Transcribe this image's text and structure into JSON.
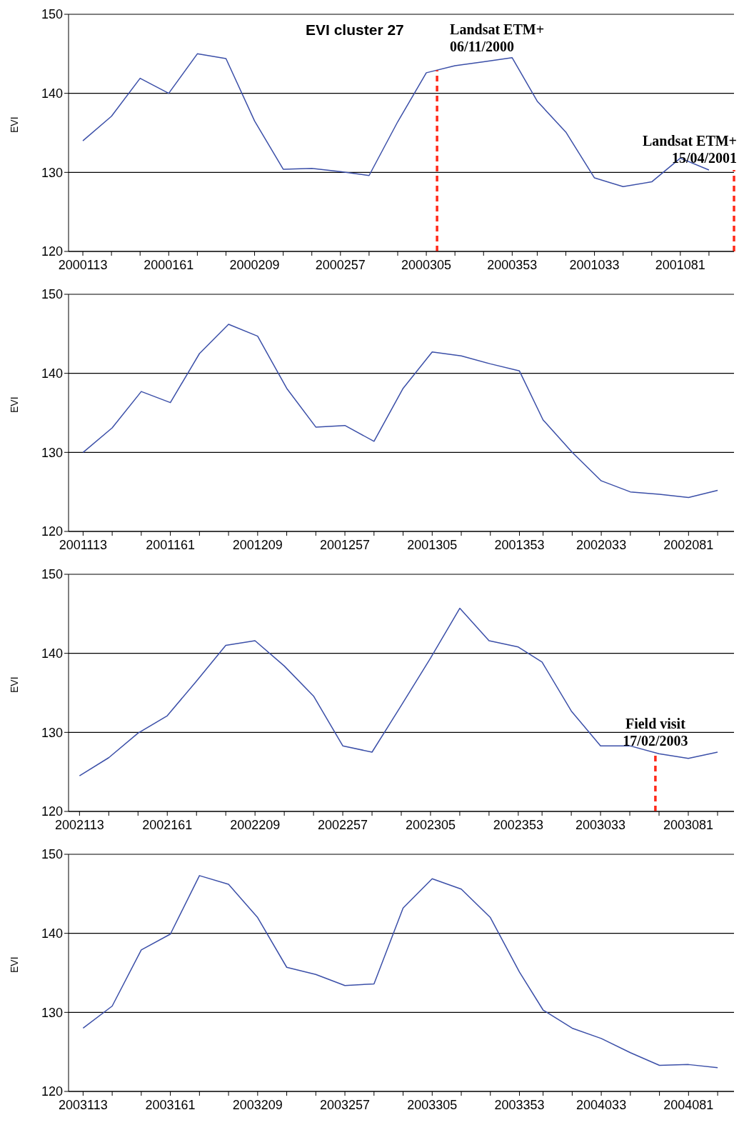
{
  "chart_data": [
    {
      "type": "line",
      "title": "EVI cluster 27",
      "ylabel": "EVI",
      "color": "#3b4fa8",
      "ylim": [
        120,
        150
      ],
      "yticks": [
        120,
        130,
        140,
        150
      ],
      "grid": "y",
      "xlim": [
        "2000-04-14",
        "2001-04-21"
      ],
      "x": [
        "2000-04-22",
        "2000-05-08",
        "2000-05-24",
        "2000-06-09",
        "2000-06-25",
        "2000-07-11",
        "2000-07-27",
        "2000-08-12",
        "2000-08-28",
        "2000-09-13",
        "2000-09-29",
        "2000-10-15",
        "2000-10-31",
        "2000-11-16",
        "2000-12-02",
        "2000-12-18",
        "2001-01-01",
        "2001-01-17",
        "2001-02-02",
        "2001-02-18",
        "2001-03-06",
        "2001-03-22",
        "2001-04-07"
      ],
      "values": [
        134.0,
        137.1,
        141.9,
        140.0,
        145.0,
        144.4,
        136.5,
        130.4,
        130.5,
        130.1,
        129.6,
        136.4,
        142.6,
        143.5,
        144.0,
        144.5,
        139.0,
        135.1,
        129.3,
        128.2,
        128.8,
        131.8,
        130.3
      ],
      "xticks": [
        {
          "value": "2000-04-22",
          "label": "2000113"
        },
        {
          "value": "2000-05-08",
          "label": null
        },
        {
          "value": "2000-05-24",
          "label": null
        },
        {
          "value": "2000-06-09",
          "label": "2000161"
        },
        {
          "value": "2000-06-25",
          "label": null
        },
        {
          "value": "2000-07-11",
          "label": null
        },
        {
          "value": "2000-07-27",
          "label": "2000209"
        },
        {
          "value": "2000-08-12",
          "label": null
        },
        {
          "value": "2000-08-28",
          "label": null
        },
        {
          "value": "2000-09-13",
          "label": "2000257"
        },
        {
          "value": "2000-09-29",
          "label": null
        },
        {
          "value": "2000-10-15",
          "label": null
        },
        {
          "value": "2000-10-31",
          "label": "2000305"
        },
        {
          "value": "2000-11-16",
          "label": null
        },
        {
          "value": "2000-12-02",
          "label": null
        },
        {
          "value": "2000-12-18",
          "label": "2000353"
        },
        {
          "value": "2001-01-01",
          "label": null
        },
        {
          "value": "2001-01-17",
          "label": null
        },
        {
          "value": "2001-02-02",
          "label": "2001033"
        },
        {
          "value": "2001-02-18",
          "label": null
        },
        {
          "value": "2001-03-06",
          "label": null
        },
        {
          "value": "2001-03-22",
          "label": "2001081"
        },
        {
          "value": "2001-04-07",
          "label": null
        }
      ],
      "ref_lines": [
        {
          "axis": "x",
          "value": "2000-11-06",
          "label": "Landsat ETM+\n06/11/2000",
          "color": "#ff2a1a",
          "line_style": "dashed"
        },
        {
          "axis": "x",
          "value": "2001-04-21",
          "label": "Landsat ETM+\n15/04/2001",
          "color": "#ff2a1a",
          "line_style": "dashed"
        }
      ]
    },
    {
      "type": "line",
      "ylabel": "EVI",
      "color": "#3b4fa8",
      "ylim": [
        120,
        150
      ],
      "yticks": [
        120,
        130,
        140,
        150
      ],
      "grid": "y",
      "xlim": [
        "2001-04-15",
        "2002-04-16"
      ],
      "x": [
        "2001-04-23",
        "2001-05-09",
        "2001-05-25",
        "2001-06-10",
        "2001-06-26",
        "2001-07-12",
        "2001-07-28",
        "2001-08-13",
        "2001-08-29",
        "2001-09-14",
        "2001-09-30",
        "2001-10-16",
        "2001-11-01",
        "2001-11-17",
        "2001-12-03",
        "2001-12-19",
        "2002-01-01",
        "2002-01-17",
        "2002-02-02",
        "2002-02-18",
        "2002-03-06",
        "2002-03-22",
        "2002-04-07"
      ],
      "values": [
        130.0,
        133.1,
        137.7,
        136.3,
        142.5,
        146.2,
        144.7,
        138.1,
        133.2,
        133.4,
        131.4,
        138.1,
        142.7,
        142.2,
        141.2,
        140.3,
        134.1,
        130.0,
        126.4,
        125.0,
        124.7,
        124.3,
        125.2
      ],
      "xticks": [
        {
          "value": "2001-04-23",
          "label": "2001113"
        },
        {
          "value": "2001-05-09",
          "label": null
        },
        {
          "value": "2001-05-25",
          "label": null
        },
        {
          "value": "2001-06-10",
          "label": "2001161"
        },
        {
          "value": "2001-06-26",
          "label": null
        },
        {
          "value": "2001-07-12",
          "label": null
        },
        {
          "value": "2001-07-28",
          "label": "2001209"
        },
        {
          "value": "2001-08-13",
          "label": null
        },
        {
          "value": "2001-08-29",
          "label": null
        },
        {
          "value": "2001-09-14",
          "label": "2001257"
        },
        {
          "value": "2001-09-30",
          "label": null
        },
        {
          "value": "2001-10-16",
          "label": null
        },
        {
          "value": "2001-11-01",
          "label": "2001305"
        },
        {
          "value": "2001-11-17",
          "label": null
        },
        {
          "value": "2001-12-03",
          "label": null
        },
        {
          "value": "2001-12-19",
          "label": "2001353"
        },
        {
          "value": "2002-01-01",
          "label": null
        },
        {
          "value": "2002-01-17",
          "label": null
        },
        {
          "value": "2002-02-02",
          "label": "2002033"
        },
        {
          "value": "2002-02-18",
          "label": null
        },
        {
          "value": "2002-03-06",
          "label": null
        },
        {
          "value": "2002-03-22",
          "label": "2002081"
        },
        {
          "value": "2002-04-07",
          "label": null
        }
      ]
    },
    {
      "type": "line",
      "ylabel": "EVI",
      "color": "#3b4fa8",
      "ylim": [
        120,
        150
      ],
      "yticks": [
        120,
        130,
        140,
        150
      ],
      "grid": "y",
      "xlim": [
        "2002-04-17",
        "2003-04-16"
      ],
      "x": [
        "2002-04-23",
        "2002-05-09",
        "2002-05-25",
        "2002-06-10",
        "2002-06-26",
        "2002-07-12",
        "2002-07-28",
        "2002-08-13",
        "2002-08-29",
        "2002-09-14",
        "2002-09-30",
        "2002-10-16",
        "2002-11-01",
        "2002-11-17",
        "2002-12-03",
        "2002-12-19",
        "2003-01-01",
        "2003-01-17",
        "2003-02-02",
        "2003-02-18",
        "2003-03-06",
        "2003-03-22",
        "2003-04-07"
      ],
      "values": [
        124.5,
        126.8,
        129.9,
        132.1,
        136.5,
        141.0,
        141.6,
        138.4,
        134.6,
        128.3,
        127.5,
        133.4,
        139.4,
        145.7,
        141.6,
        140.8,
        138.9,
        132.7,
        128.3,
        128.3,
        127.3,
        126.7,
        127.5
      ],
      "xticks": [
        {
          "value": "2002-04-23",
          "label": "2002113"
        },
        {
          "value": "2002-05-09",
          "label": null
        },
        {
          "value": "2002-05-25",
          "label": null
        },
        {
          "value": "2002-06-10",
          "label": "2002161"
        },
        {
          "value": "2002-06-26",
          "label": null
        },
        {
          "value": "2002-07-12",
          "label": null
        },
        {
          "value": "2002-07-28",
          "label": "2002209"
        },
        {
          "value": "2002-08-13",
          "label": null
        },
        {
          "value": "2002-08-29",
          "label": null
        },
        {
          "value": "2002-09-14",
          "label": "2002257"
        },
        {
          "value": "2002-09-30",
          "label": null
        },
        {
          "value": "2002-10-16",
          "label": null
        },
        {
          "value": "2002-11-01",
          "label": "2002305"
        },
        {
          "value": "2002-11-17",
          "label": null
        },
        {
          "value": "2002-12-03",
          "label": null
        },
        {
          "value": "2002-12-19",
          "label": "2002353"
        },
        {
          "value": "2003-01-01",
          "label": null
        },
        {
          "value": "2003-01-17",
          "label": null
        },
        {
          "value": "2003-02-02",
          "label": "2003033"
        },
        {
          "value": "2003-02-18",
          "label": null
        },
        {
          "value": "2003-03-06",
          "label": null
        },
        {
          "value": "2003-03-22",
          "label": "2003081"
        },
        {
          "value": "2003-04-07",
          "label": null
        }
      ],
      "ref_lines": [
        {
          "axis": "x",
          "value": "2003-03-04",
          "label": "Field visit\n17/02/2003",
          "color": "#ff2a1a",
          "line_style": "dashed"
        }
      ]
    },
    {
      "type": "line",
      "ylabel": "EVI",
      "color": "#3b4fa8",
      "ylim": [
        120,
        150
      ],
      "yticks": [
        120,
        130,
        140,
        150
      ],
      "grid": "y",
      "xlim": [
        "2003-04-15",
        "2004-04-15"
      ],
      "x": [
        "2003-04-23",
        "2003-05-09",
        "2003-05-25",
        "2003-06-10",
        "2003-06-26",
        "2003-07-12",
        "2003-07-28",
        "2003-08-13",
        "2003-08-29",
        "2003-09-14",
        "2003-09-30",
        "2003-10-16",
        "2003-11-01",
        "2003-11-17",
        "2003-12-03",
        "2003-12-19",
        "2004-01-01",
        "2004-01-17",
        "2004-02-02",
        "2004-02-18",
        "2004-03-05",
        "2004-03-21",
        "2004-04-06"
      ],
      "values": [
        128.0,
        130.8,
        137.9,
        139.9,
        147.3,
        146.2,
        142.0,
        135.7,
        134.8,
        133.4,
        133.6,
        143.2,
        146.9,
        145.6,
        142.0,
        135.1,
        130.3,
        128.0,
        126.7,
        124.9,
        123.3,
        123.4,
        123.0
      ],
      "xticks": [
        {
          "value": "2003-04-23",
          "label": "2003113"
        },
        {
          "value": "2003-05-09",
          "label": null
        },
        {
          "value": "2003-05-25",
          "label": null
        },
        {
          "value": "2003-06-10",
          "label": "2003161"
        },
        {
          "value": "2003-06-26",
          "label": null
        },
        {
          "value": "2003-07-12",
          "label": null
        },
        {
          "value": "2003-07-28",
          "label": "2003209"
        },
        {
          "value": "2003-08-13",
          "label": null
        },
        {
          "value": "2003-08-29",
          "label": null
        },
        {
          "value": "2003-09-14",
          "label": "2003257"
        },
        {
          "value": "2003-09-30",
          "label": null
        },
        {
          "value": "2003-10-16",
          "label": null
        },
        {
          "value": "2003-11-01",
          "label": "2003305"
        },
        {
          "value": "2003-11-17",
          "label": null
        },
        {
          "value": "2003-12-03",
          "label": null
        },
        {
          "value": "2003-12-19",
          "label": "2003353"
        },
        {
          "value": "2004-01-01",
          "label": null
        },
        {
          "value": "2004-01-17",
          "label": null
        },
        {
          "value": "2004-02-02",
          "label": "2004033"
        },
        {
          "value": "2004-02-18",
          "label": null
        },
        {
          "value": "2004-03-05",
          "label": null
        },
        {
          "value": "2004-03-21",
          "label": "2004081"
        },
        {
          "value": "2004-04-06",
          "label": null
        }
      ]
    }
  ]
}
